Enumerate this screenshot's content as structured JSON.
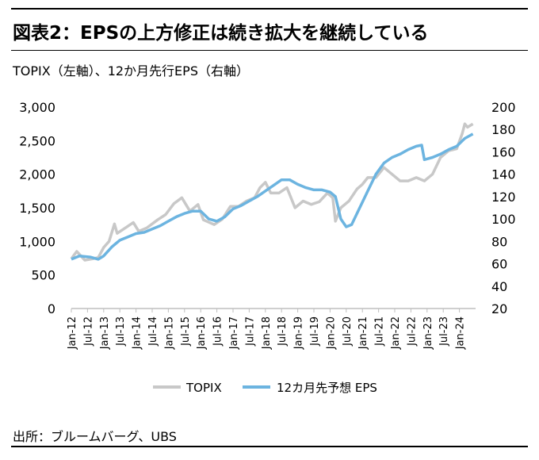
{
  "header": {
    "title": "図表2：EPSの上方修正は続き拡大を継続している",
    "subtitle": "TOPIX（左軸）、12か月先行EPS（右軸）"
  },
  "footer": {
    "source": "出所：ブルームバーグ、UBS"
  },
  "colors": {
    "topix": "#c8c8c8",
    "eps": "#6cb4e0",
    "axis": "#bfbfbf",
    "text": "#000000"
  },
  "chart_data": {
    "type": "line",
    "title": "",
    "xlabel": "",
    "ylabel": "",
    "y_left_lim": [
      0,
      3000
    ],
    "y_left_ticks": [
      "3,000",
      "2,500",
      "2,000",
      "1,500",
      "1,000",
      "500",
      "0"
    ],
    "y_right_lim": [
      20,
      200
    ],
    "y_right_ticks": [
      "200",
      "180",
      "160",
      "140",
      "120",
      "100",
      "80",
      "60",
      "40",
      "20"
    ],
    "x_ticks": [
      "Jan-12",
      "Jul-12",
      "Jan-13",
      "Jul-13",
      "Jan-14",
      "Jul-14",
      "Jan-15",
      "Jul-15",
      "Jan-16",
      "Jul-16",
      "Jan-17",
      "Jul-17",
      "Jan-18",
      "Jul-18",
      "Jan-19",
      "Jul-19",
      "Jan-20",
      "Jul-20",
      "Jan-21",
      "Jul-21",
      "Jan-22",
      "Jul-22",
      "Jan-23",
      "Jul-23",
      "Jan-24"
    ],
    "grid": false,
    "legend_position": "bottom",
    "series": [
      {
        "name": "TOPIX",
        "axis": "left",
        "color": "#c8c8c8",
        "points": [
          [
            "2012-01",
            740
          ],
          [
            "2012-03",
            850
          ],
          [
            "2012-06",
            720
          ],
          [
            "2012-09",
            740
          ],
          [
            "2012-11",
            760
          ],
          [
            "2013-01",
            910
          ],
          [
            "2013-03",
            1000
          ],
          [
            "2013-05",
            1260
          ],
          [
            "2013-06",
            1120
          ],
          [
            "2013-09",
            1200
          ],
          [
            "2013-12",
            1280
          ],
          [
            "2014-02",
            1150
          ],
          [
            "2014-05",
            1200
          ],
          [
            "2014-09",
            1320
          ],
          [
            "2014-12",
            1400
          ],
          [
            "2015-03",
            1560
          ],
          [
            "2015-06",
            1650
          ],
          [
            "2015-09",
            1450
          ],
          [
            "2015-12",
            1550
          ],
          [
            "2016-02",
            1320
          ],
          [
            "2016-06",
            1250
          ],
          [
            "2016-09",
            1330
          ],
          [
            "2016-12",
            1520
          ],
          [
            "2017-03",
            1520
          ],
          [
            "2017-06",
            1600
          ],
          [
            "2017-09",
            1650
          ],
          [
            "2017-11",
            1800
          ],
          [
            "2018-01",
            1880
          ],
          [
            "2018-03",
            1720
          ],
          [
            "2018-06",
            1720
          ],
          [
            "2018-09",
            1800
          ],
          [
            "2018-12",
            1500
          ],
          [
            "2019-03",
            1600
          ],
          [
            "2019-06",
            1550
          ],
          [
            "2019-09",
            1590
          ],
          [
            "2019-12",
            1720
          ],
          [
            "2020-02",
            1650
          ],
          [
            "2020-03",
            1300
          ],
          [
            "2020-05",
            1500
          ],
          [
            "2020-08",
            1600
          ],
          [
            "2020-11",
            1780
          ],
          [
            "2021-01",
            1850
          ],
          [
            "2021-03",
            1950
          ],
          [
            "2021-06",
            1950
          ],
          [
            "2021-09",
            2100
          ],
          [
            "2021-12",
            2000
          ],
          [
            "2022-03",
            1900
          ],
          [
            "2022-06",
            1900
          ],
          [
            "2022-09",
            1950
          ],
          [
            "2022-12",
            1900
          ],
          [
            "2023-03",
            2000
          ],
          [
            "2023-06",
            2250
          ],
          [
            "2023-09",
            2350
          ],
          [
            "2023-12",
            2380
          ],
          [
            "2024-02",
            2600
          ],
          [
            "2024-03",
            2750
          ],
          [
            "2024-04",
            2700
          ],
          [
            "2024-06",
            2750
          ]
        ]
      },
      {
        "name": "12カ月先予想 EPS",
        "axis": "right",
        "color": "#6cb4e0",
        "points": [
          [
            "2012-01",
            64
          ],
          [
            "2012-04",
            67
          ],
          [
            "2012-08",
            66
          ],
          [
            "2012-11",
            64
          ],
          [
            "2013-01",
            67
          ],
          [
            "2013-04",
            75
          ],
          [
            "2013-07",
            81
          ],
          [
            "2013-10",
            84
          ],
          [
            "2014-01",
            87
          ],
          [
            "2014-04",
            88
          ],
          [
            "2014-07",
            91
          ],
          [
            "2014-10",
            94
          ],
          [
            "2015-01",
            98
          ],
          [
            "2015-04",
            102
          ],
          [
            "2015-07",
            105
          ],
          [
            "2015-10",
            107
          ],
          [
            "2016-01",
            107
          ],
          [
            "2016-04",
            100
          ],
          [
            "2016-07",
            98
          ],
          [
            "2016-10",
            102
          ],
          [
            "2017-01",
            109
          ],
          [
            "2017-04",
            112
          ],
          [
            "2017-07",
            116
          ],
          [
            "2017-10",
            120
          ],
          [
            "2018-01",
            125
          ],
          [
            "2018-04",
            130
          ],
          [
            "2018-07",
            135
          ],
          [
            "2018-10",
            135
          ],
          [
            "2019-01",
            131
          ],
          [
            "2019-04",
            128
          ],
          [
            "2019-07",
            126
          ],
          [
            "2019-10",
            126
          ],
          [
            "2020-01",
            124
          ],
          [
            "2020-03",
            120
          ],
          [
            "2020-05",
            100
          ],
          [
            "2020-07",
            93
          ],
          [
            "2020-09",
            95
          ],
          [
            "2020-12",
            110
          ],
          [
            "2021-03",
            125
          ],
          [
            "2021-06",
            140
          ],
          [
            "2021-09",
            150
          ],
          [
            "2021-12",
            155
          ],
          [
            "2022-03",
            158
          ],
          [
            "2022-06",
            162
          ],
          [
            "2022-09",
            165
          ],
          [
            "2022-11",
            166
          ],
          [
            "2022-12",
            153
          ],
          [
            "2023-03",
            155
          ],
          [
            "2023-06",
            158
          ],
          [
            "2023-09",
            162
          ],
          [
            "2023-12",
            165
          ],
          [
            "2024-03",
            172
          ],
          [
            "2024-06",
            176
          ]
        ]
      }
    ]
  }
}
